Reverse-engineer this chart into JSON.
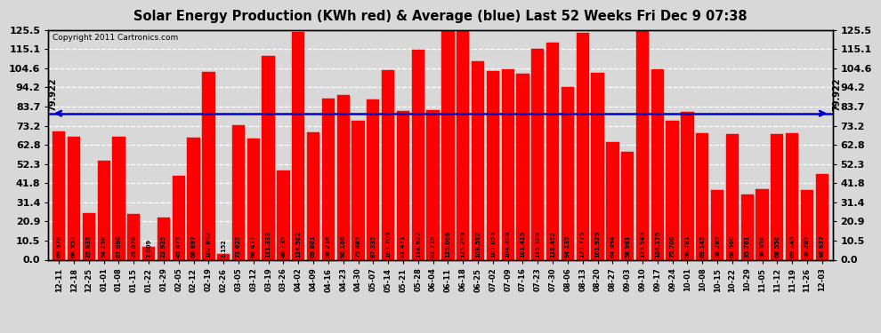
{
  "title": "Solar Energy Production (KWh red) & Average (blue) Last 52 Weeks Fri Dec 9 07:38",
  "copyright": "Copyright 2011 Cartronics.com",
  "average_line": 79.922,
  "bar_color": "#FF0000",
  "avg_line_color": "#0000CC",
  "background_color": "#D8D8D8",
  "plot_bg_color": "#D8D8D8",
  "ylim": [
    0.0,
    125.5
  ],
  "yticks": [
    0.0,
    10.5,
    20.9,
    31.4,
    41.8,
    52.3,
    62.8,
    73.2,
    83.7,
    94.2,
    104.6,
    115.1,
    125.5
  ],
  "categories": [
    "12-11",
    "12-18",
    "12-25",
    "01-01",
    "01-08",
    "01-15",
    "01-22",
    "01-29",
    "02-05",
    "02-12",
    "02-19",
    "02-26",
    "03-05",
    "03-12",
    "03-19",
    "03-26",
    "04-02",
    "04-09",
    "04-16",
    "04-23",
    "04-30",
    "05-07",
    "05-14",
    "05-21",
    "05-28",
    "06-04",
    "06-11",
    "06-18",
    "06-25",
    "07-02",
    "07-09",
    "07-16",
    "07-23",
    "07-30",
    "08-06",
    "08-13",
    "08-20",
    "08-27",
    "09-03",
    "09-10",
    "09-17",
    "09-24",
    "10-01",
    "10-08",
    "10-15",
    "10-22",
    "10-29",
    "11-05",
    "11-12",
    "11-19",
    "11-26",
    "12-03"
  ],
  "values": [
    69.978,
    66.953,
    25.635,
    54.15,
    67.09,
    25.078,
    7.009,
    22.925,
    45.875,
    66.897,
    102.692,
    3.152,
    73.625,
    66.417,
    111.332,
    48.735,
    124.582,
    69.801,
    88.216,
    90.106,
    75.885,
    87.335,
    103.709,
    81.471,
    114.922,
    81.715,
    125.006,
    125.29,
    108.592,
    103.059,
    104.28,
    101.415,
    115.18,
    118.452,
    94.135,
    123.775,
    101.925,
    64.094,
    58.981,
    125.54,
    104.175,
    75.7,
    80.781,
    69.145,
    38.285,
    68.56,
    35.761,
    38.55,
    68.55,
    69.145,
    38.285,
    46.937
  ]
}
